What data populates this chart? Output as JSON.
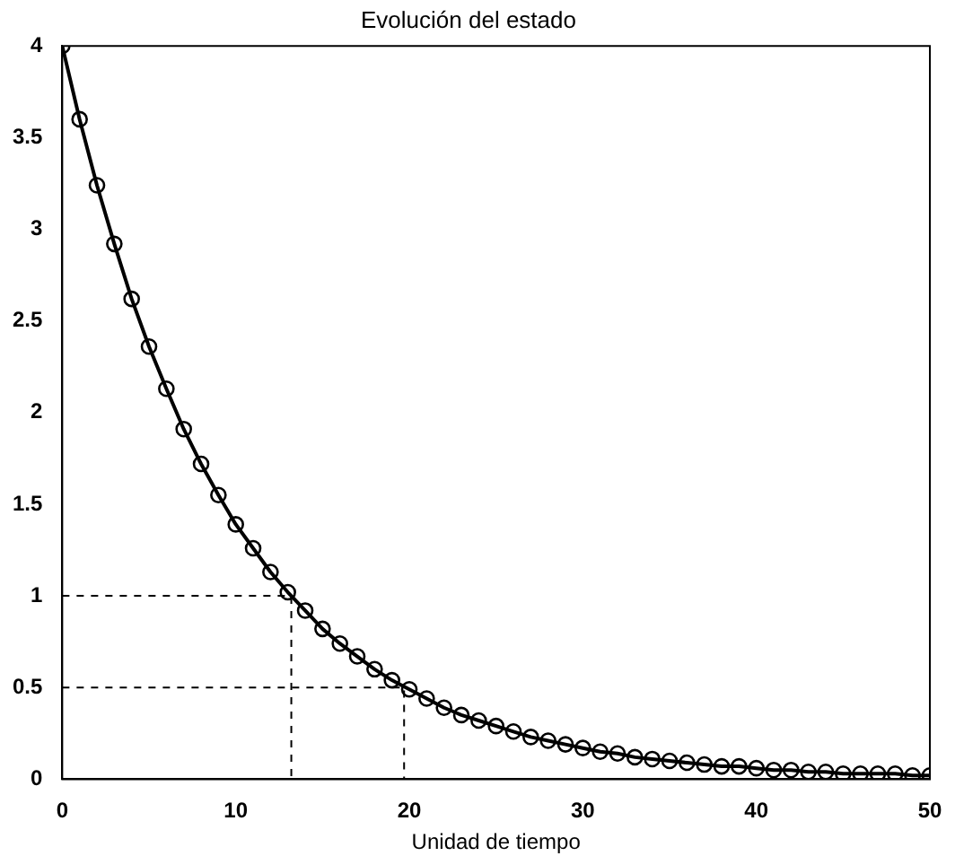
{
  "chart_data": {
    "type": "line",
    "title": "Evolución del estado",
    "xlabel": "Unidad de tiempo",
    "x": [
      0,
      1,
      2,
      3,
      4,
      5,
      6,
      7,
      8,
      9,
      10,
      11,
      12,
      13,
      14,
      15,
      16,
      17,
      18,
      19,
      20,
      21,
      22,
      23,
      24,
      25,
      26,
      27,
      28,
      29,
      30,
      31,
      32,
      33,
      34,
      35,
      36,
      37,
      38,
      39,
      40,
      41,
      42,
      43,
      44,
      45,
      46,
      47,
      48,
      49,
      50
    ],
    "series": [
      {
        "color": "#000000",
        "marker": "circle",
        "line_style": "solid",
        "values": [
          4,
          3.6,
          3.24,
          2.92,
          2.62,
          2.36,
          2.13,
          1.91,
          1.72,
          1.55,
          1.39,
          1.26,
          1.13,
          1.02,
          0.92,
          0.82,
          0.74,
          0.67,
          0.6,
          0.54,
          0.49,
          0.44,
          0.39,
          0.35,
          0.32,
          0.29,
          0.26,
          0.23,
          0.21,
          0.19,
          0.17,
          0.15,
          0.14,
          0.12,
          0.11,
          0.1,
          0.09,
          0.08,
          0.07,
          0.07,
          0.06,
          0.05,
          0.05,
          0.04,
          0.04,
          0.03,
          0.03,
          0.03,
          0.03,
          0.02,
          0.02
        ]
      },
      {
        "type": "line",
        "color": "#000000",
        "marker": "none",
        "line_style": "dashed",
        "x": [
          0,
          13.2,
          13.2
        ],
        "values": [
          1,
          1,
          0
        ]
      },
      {
        "type": "line",
        "color": "#000000",
        "marker": "none",
        "line_style": "dashed",
        "x": [
          0,
          19.7,
          19.7
        ],
        "values": [
          0.5,
          0.5,
          0
        ]
      }
    ],
    "xlim": [
      0,
      50
    ],
    "xticks": [
      0,
      10,
      20,
      30,
      40,
      50
    ],
    "ylim": [
      0,
      4
    ],
    "yticks": [
      0,
      0.5,
      1,
      1.5,
      2,
      2.5,
      3,
      3.5,
      4
    ],
    "grid": false,
    "legend": false
  }
}
